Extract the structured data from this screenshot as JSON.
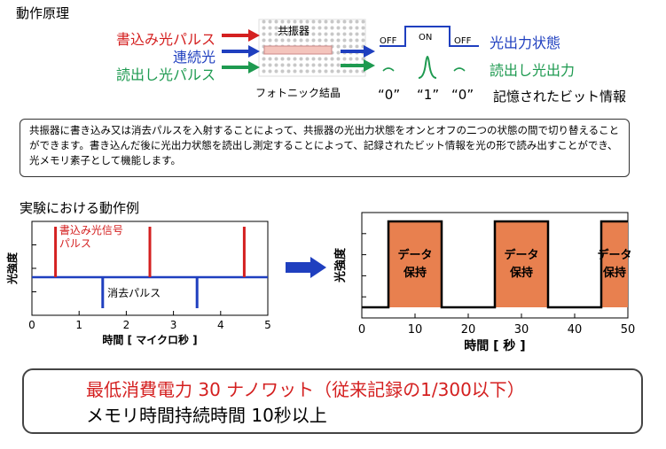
{
  "section1": {
    "title": "動作原理"
  },
  "principle": {
    "inputs": [
      {
        "label": "書込み光パルス",
        "color": "#d42020"
      },
      {
        "label": "連続光",
        "color": "#1f3fbf"
      },
      {
        "label": "読出し光パルス",
        "color": "#1e9a50"
      }
    ],
    "resonator_label": "共振器",
    "crystal_label": "フォトニック結晶",
    "output_state_label": "光出力状態",
    "readout_label": "読出し光出力",
    "states": [
      "OFF",
      "ON",
      "OFF"
    ],
    "bits": [
      "“0”",
      "“1”",
      "“0”"
    ],
    "bits_caption": "記憶されたビット情報"
  },
  "description": "共振器に書き込み又は消去パルスを入射することによって、共振器の光出力状態をオンとオフの二つの状態の間で切り替えることができます。書き込んだ後に光出力状態を読出し測定することによって、記録されたビット情報を光の形で読み出すことができ、光メモリ素子として機能します。",
  "section2": {
    "title": "実験における動作例"
  },
  "chart_data": [
    {
      "type": "line",
      "xlabel": "時間 [ マイクロ秒 ]",
      "ylabel": "光強度",
      "xlim": [
        0,
        5
      ],
      "ticks": [
        "0",
        "1",
        "2",
        "3",
        "4",
        "5"
      ],
      "baseline": 0,
      "write_pulses": {
        "label": "書込み光信号パルス",
        "label_lines": [
          "書込み光信号",
          "パルス"
        ],
        "x": [
          0.5,
          2.5,
          4.5
        ],
        "height": 1.0,
        "color": "#d42020"
      },
      "erase_pulses": {
        "label": "消去パルス",
        "x": [
          1.5,
          3.5
        ],
        "depth": -0.5,
        "color": "#1f3fbf"
      }
    },
    {
      "type": "line",
      "xlabel": "時間 [ 秒 ]",
      "ylabel": "光強度",
      "xlim": [
        0,
        50
      ],
      "ticks": [
        "0",
        "10",
        "20",
        "30",
        "40",
        "50"
      ],
      "low_level": 0,
      "high_level": 1,
      "hold_intervals": [
        [
          5,
          15
        ],
        [
          25,
          35
        ],
        [
          45,
          50
        ]
      ],
      "hold_label_lines": [
        "データ",
        "保持"
      ],
      "hold_color": "#e8804f"
    }
  ],
  "summary": {
    "line1": "最低消費電力 30 ナノワット（従来記録の1/300以下）",
    "line2": "メモリ時間持続時間 10秒以上"
  }
}
